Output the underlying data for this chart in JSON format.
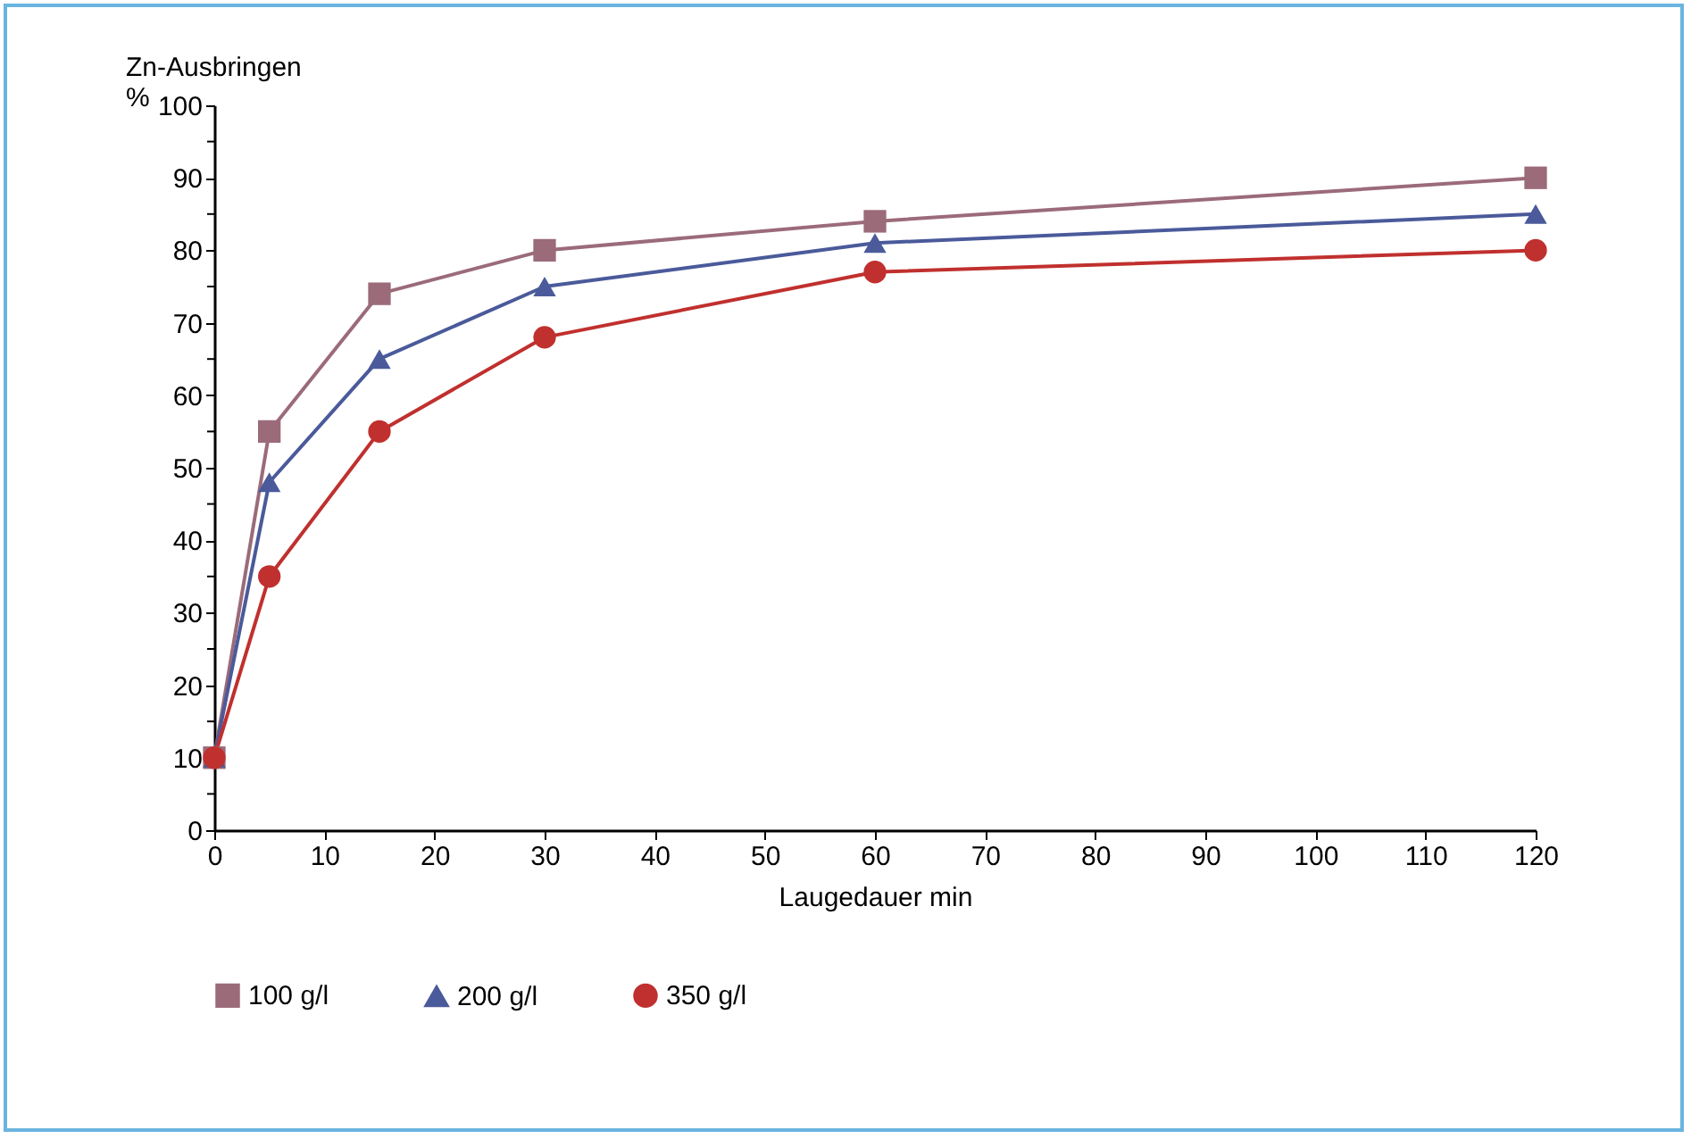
{
  "chart_data": {
    "type": "line",
    "xlabel": "Laugedauer  min",
    "ylabel": "Zn-Ausbringen\n%",
    "x": [
      0,
      5,
      15,
      30,
      60,
      120
    ],
    "series": [
      {
        "name": "100 g/l",
        "color": "#9b6b7a",
        "marker": "square",
        "values": [
          10,
          55,
          74,
          80,
          84,
          90
        ]
      },
      {
        "name": "200 g/l",
        "color": "#4a5a9a",
        "marker": "triangle",
        "values": [
          10,
          48,
          65,
          75,
          81,
          85
        ]
      },
      {
        "name": "350 g/l",
        "color": "#c0302e",
        "marker": "circle",
        "values": [
          10,
          35,
          55,
          68,
          77,
          80
        ]
      }
    ],
    "xlim": [
      0,
      120
    ],
    "xticks": [
      0,
      10,
      20,
      30,
      40,
      50,
      60,
      70,
      80,
      90,
      100,
      110,
      120
    ],
    "ylim": [
      0,
      100
    ],
    "yticks": [
      0,
      {
        "value": 5,
        "label": null
      },
      10,
      {
        "value": 15,
        "label": null
      },
      20,
      {
        "value": 25,
        "label": null
      },
      30,
      {
        "value": 35,
        "label": null
      },
      40,
      {
        "value": 45,
        "label": null
      },
      50,
      {
        "value": 55,
        "label": null
      },
      60,
      {
        "value": 65,
        "label": null
      },
      70,
      {
        "value": 75,
        "label": null
      },
      80,
      {
        "value": 85,
        "label": null
      },
      90,
      {
        "value": 95,
        "label": null
      },
      100
    ],
    "grid": false,
    "legend": "bottom",
    "line_style": "solid"
  }
}
